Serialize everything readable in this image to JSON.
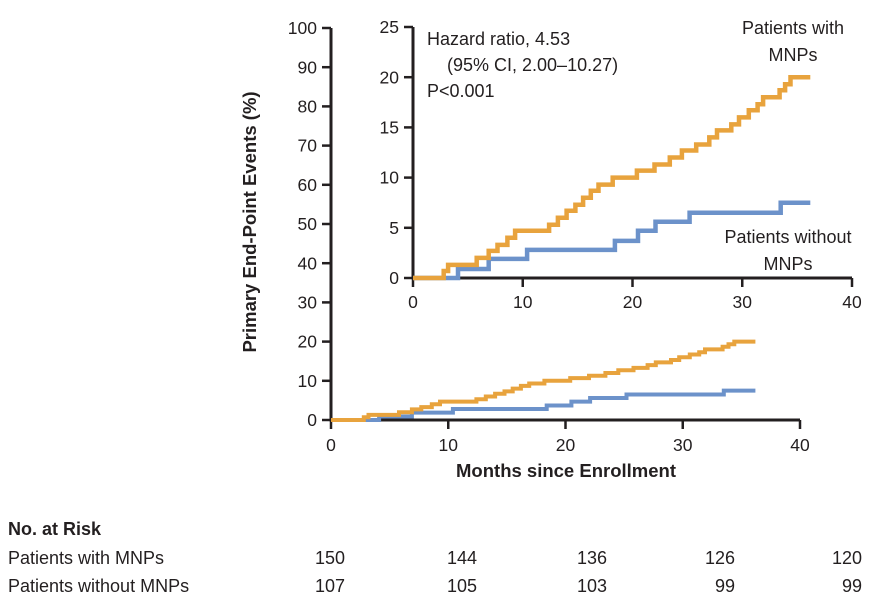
{
  "figure": {
    "y_axis_title": "Primary End-Point Events (%)",
    "x_axis_title": "Months since Enrollment",
    "annotation": {
      "line1": "Hazard ratio, 4.53",
      "line2": "(95% CI, 2.00–10.27)",
      "line3": "P<0.001"
    },
    "curve_labels": {
      "with_mnps": {
        "line1": "Patients with",
        "line2": "MNPs"
      },
      "without_mnps": {
        "line1": "Patients without",
        "line2": "MNPs"
      }
    }
  },
  "risk_table": {
    "title": "No. at Risk",
    "tick_months": [
      0,
      10,
      20,
      30,
      40
    ],
    "rows": [
      {
        "label": "Patients with MNPs",
        "counts": [
          150,
          144,
          136,
          126,
          120
        ]
      },
      {
        "label": "Patients without MNPs",
        "counts": [
          107,
          105,
          103,
          99,
          99
        ]
      }
    ]
  },
  "chart_data": {
    "type": "line",
    "step": true,
    "title": "",
    "xlabel": "Months since Enrollment",
    "ylabel": "Primary End-Point Events (%)",
    "axis_color": "#231F20",
    "panels": {
      "main": {
        "xlim": [
          0,
          40
        ],
        "ylim": [
          0,
          100
        ],
        "xticks": [
          0,
          10,
          20,
          30,
          40
        ],
        "yticks": [
          0,
          10,
          20,
          30,
          40,
          50,
          60,
          70,
          80,
          90,
          100
        ],
        "grid": false
      },
      "inset": {
        "xlim": [
          0,
          40
        ],
        "ylim": [
          0,
          25
        ],
        "xticks": [
          0,
          10,
          20,
          30,
          40
        ],
        "yticks": [
          0,
          5,
          10,
          15,
          20,
          25
        ],
        "grid": false
      }
    },
    "series": [
      {
        "name": "Patients with MNPs",
        "color": "#E8A33D",
        "x": [
          0,
          2.8,
          3.2,
          5.8,
          6.9,
          7.7,
          8.6,
          9.3,
          12.4,
          13.2,
          14.0,
          14.8,
          15.5,
          16.2,
          16.9,
          18.2,
          20.4,
          22.0,
          23.4,
          24.5,
          25.8,
          27.0,
          27.7,
          29.0,
          29.7,
          30.6,
          31.4,
          31.9,
          33.4,
          33.9,
          34.4,
          36.2
        ],
        "y": [
          0,
          0.7,
          1.3,
          2.0,
          2.7,
          3.3,
          4.0,
          4.7,
          5.3,
          6.0,
          6.7,
          7.3,
          8.0,
          8.7,
          9.3,
          10.0,
          10.7,
          11.3,
          12.0,
          12.7,
          13.3,
          14.0,
          14.7,
          15.3,
          16.0,
          16.7,
          17.3,
          18.0,
          18.7,
          19.3,
          20.0,
          20.0
        ]
      },
      {
        "name": "Patients without MNPs",
        "color": "#6C92CA",
        "x": [
          0,
          4.1,
          6.9,
          10.4,
          18.4,
          20.5,
          22.1,
          25.2,
          33.5,
          36.2
        ],
        "y": [
          0,
          0.9,
          1.9,
          2.8,
          3.7,
          4.7,
          5.6,
          6.5,
          7.5,
          7.5
        ]
      }
    ]
  }
}
